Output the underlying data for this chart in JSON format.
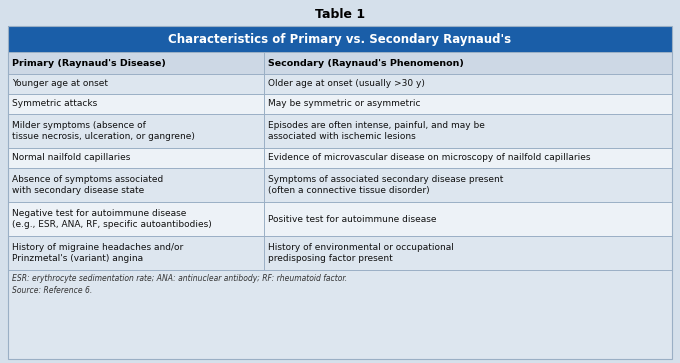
{
  "title": "Table 1",
  "header_text": "Characteristics of Primary vs. Secondary Raynaud's",
  "col1_header": "Primary (Raynaud's Disease)",
  "col2_header": "Secondary (Raynaud's Phenomenon)",
  "rows": [
    [
      "Younger age at onset",
      "Older age at onset (usually >30 y)"
    ],
    [
      "Symmetric attacks",
      "May be symmetric or asymmetric"
    ],
    [
      "Milder symptoms (absence of\ntissue necrosis, ulceration, or gangrene)",
      "Episodes are often intense, painful, and may be\nassociated with ischemic lesions"
    ],
    [
      "Normal nailfold capillaries",
      "Evidence of microvascular disease on microscopy of nailfold capillaries"
    ],
    [
      "Absence of symptoms associated\nwith secondary disease state",
      "Symptoms of associated secondary disease present\n(often a connective tissue disorder)"
    ],
    [
      "Negative test for autoimmune disease\n(e.g., ESR, ANA, RF, specific autoantibodies)",
      "Positive test for autoimmune disease"
    ],
    [
      "History of migraine headaches and/or\nPrinzmetal's (variant) angina",
      "History of environmental or occupational\npredisposing factor present"
    ]
  ],
  "footnote": "ESR: erythrocyte sedimentation rate; ANA: antinuclear antibody; RF: rheumatoid factor.\nSource: Reference 6.",
  "header_bg": "#1a5ea8",
  "header_fg": "#ffffff",
  "col_header_bg": "#cdd8e5",
  "col_header_fg": "#000000",
  "row_bg_even": "#dde6ef",
  "row_bg_odd": "#edf2f7",
  "footnote_bg": "#dde6ef",
  "title_color": "#000000",
  "border_color": "#9aafc5",
  "col_split": 0.385,
  "fig_bg": "#d5e0eb",
  "outer_bg": "#d5e0eb"
}
